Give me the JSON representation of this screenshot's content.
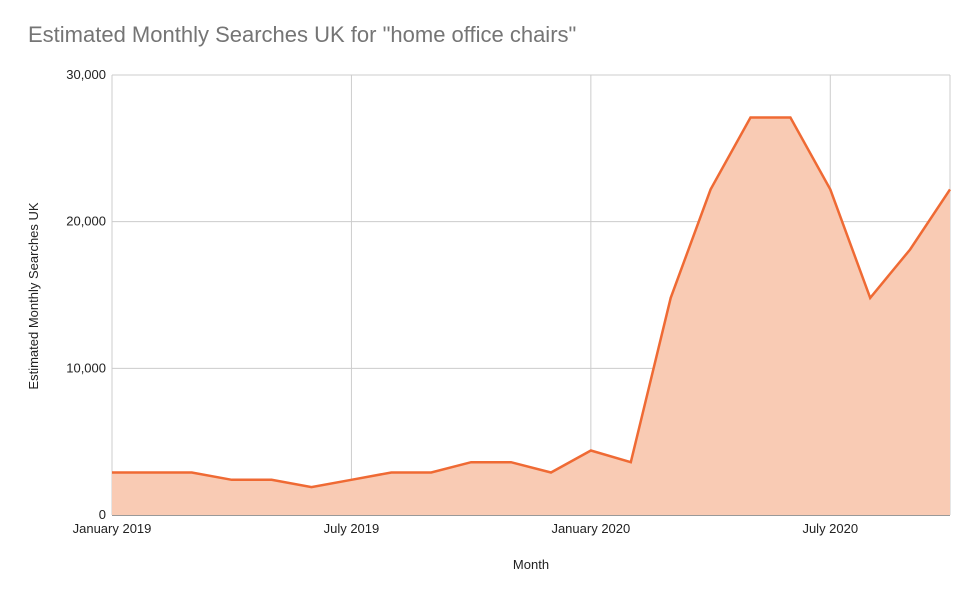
{
  "chart_data": {
    "type": "area",
    "title": "Estimated Monthly Searches UK for \"home office chairs\"",
    "xlabel": "Month",
    "ylabel": "Estimated Monthly Searches UK",
    "ylim": [
      0,
      30000
    ],
    "y_ticks": [
      0,
      10000,
      20000,
      30000
    ],
    "y_tick_labels": [
      "0",
      "10,000",
      "20,000",
      "30,000"
    ],
    "x_ticks": [
      "2019-01",
      "2019-07",
      "2020-01",
      "2020-07"
    ],
    "x_tick_labels": [
      "January 2019",
      "July 2019",
      "January 2020",
      "July 2020"
    ],
    "x": [
      "2019-01",
      "2019-02",
      "2019-03",
      "2019-04",
      "2019-05",
      "2019-06",
      "2019-07",
      "2019-08",
      "2019-09",
      "2019-10",
      "2019-11",
      "2019-12",
      "2020-01",
      "2020-02",
      "2020-03",
      "2020-04",
      "2020-05",
      "2020-06",
      "2020-07",
      "2020-08",
      "2020-09",
      "2020-10"
    ],
    "series": [
      {
        "values": [
          2900,
          2900,
          2900,
          2400,
          2400,
          1900,
          2400,
          2900,
          2900,
          3600,
          3600,
          2900,
          4400,
          3600,
          14800,
          22200,
          27100,
          27100,
          22200,
          14800,
          18100,
          22200
        ],
        "line_color": "#ef6a34",
        "fill_color": "#f9cbb4"
      }
    ],
    "grid": true,
    "legend": "none"
  }
}
